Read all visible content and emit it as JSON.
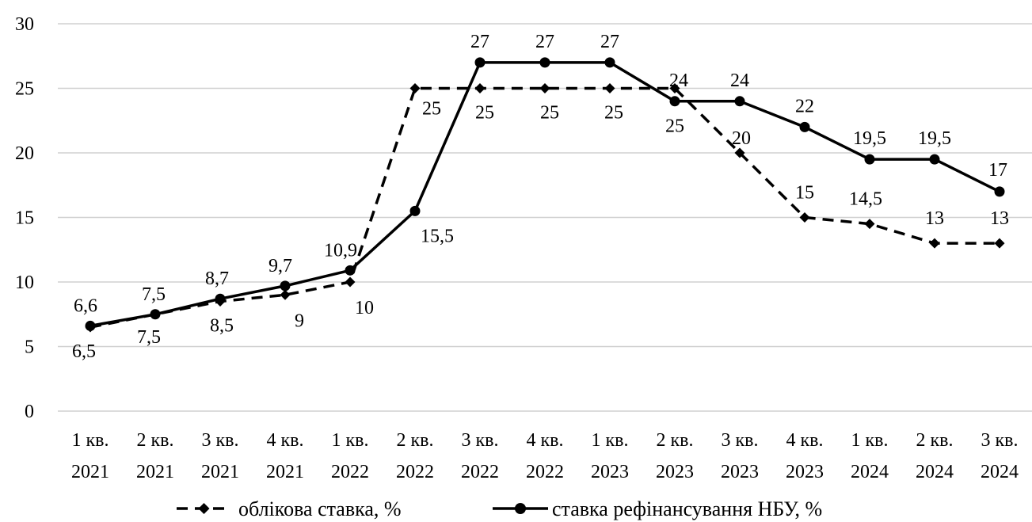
{
  "chart_data": {
    "type": "line",
    "title": "",
    "xlabel": "",
    "ylabel": "",
    "ylim": [
      0,
      30
    ],
    "yticks": [
      0,
      5,
      10,
      15,
      20,
      25,
      30
    ],
    "grid": true,
    "legend_position": "bottom",
    "categories": [
      [
        "1 кв.",
        "2021"
      ],
      [
        "2 кв.",
        "2021"
      ],
      [
        "3 кв.",
        "2021"
      ],
      [
        "4 кв.",
        "2021"
      ],
      [
        "1 кв.",
        "2022"
      ],
      [
        "2 кв.",
        "2022"
      ],
      [
        "3 кв.",
        "2022"
      ],
      [
        "4 кв.",
        "2022"
      ],
      [
        "1 кв.",
        "2023"
      ],
      [
        "2 кв.",
        "2023"
      ],
      [
        "3 кв.",
        "2023"
      ],
      [
        "4 кв.",
        "2023"
      ],
      [
        "1 кв.",
        "2024"
      ],
      [
        "2 кв.",
        "2024"
      ],
      [
        "3 кв.",
        "2024"
      ]
    ],
    "series": [
      {
        "name": "облікова ставка, %",
        "style": "dashed",
        "marker": "diamond",
        "color": "#000000",
        "values": [
          6.5,
          7.5,
          8.5,
          9,
          10,
          25,
          25,
          25,
          25,
          25,
          20,
          15,
          14.5,
          13,
          13
        ],
        "labels": [
          "6,5",
          "7,5",
          "8,5",
          "9",
          "10",
          "25",
          "25",
          "25",
          "25",
          "25",
          "20",
          "15",
          "14,5",
          "13",
          "13"
        ]
      },
      {
        "name": "ставка рефінансування НБУ, %",
        "style": "solid",
        "marker": "circle",
        "color": "#000000",
        "values": [
          6.6,
          7.5,
          8.7,
          9.7,
          10.9,
          15.5,
          27,
          27,
          27,
          24,
          24,
          22,
          19.5,
          19.5,
          17
        ],
        "labels": [
          "6,6",
          "7,5",
          "8,7",
          "9,7",
          "10,9",
          "15,5",
          "27",
          "27",
          "27",
          "24",
          "24",
          "22",
          "19,5",
          "19,5",
          "17"
        ]
      }
    ]
  }
}
